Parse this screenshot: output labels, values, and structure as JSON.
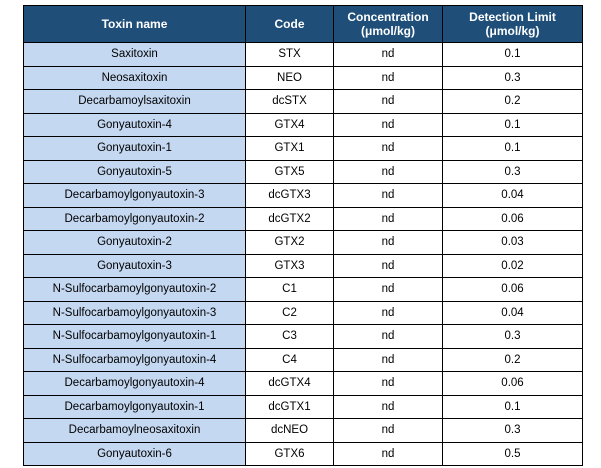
{
  "colors": {
    "header_bg": "#1F4E79",
    "header_text": "#FFFFFF",
    "name_column_bg": "#C5D8F1",
    "body_bg": "#FFFFFF",
    "border": "#000000"
  },
  "chart_data": {
    "type": "table",
    "columns": [
      {
        "id": "name",
        "line1": "Toxin name",
        "line2": ""
      },
      {
        "id": "code",
        "line1": "Code",
        "line2": ""
      },
      {
        "id": "concentration",
        "line1": "Concentration",
        "line2": "(μmol/kg)"
      },
      {
        "id": "detection_limit",
        "line1": "Detection Limit",
        "line2": "(μmol/kg)"
      }
    ],
    "rows": [
      {
        "name": "Saxitoxin",
        "code": "STX",
        "concentration": "nd",
        "detection_limit": "0.1"
      },
      {
        "name": "Neosaxitoxin",
        "code": "NEO",
        "concentration": "nd",
        "detection_limit": "0.3"
      },
      {
        "name": "Decarbamoylsaxitoxin",
        "code": "dcSTX",
        "concentration": "nd",
        "detection_limit": "0.2"
      },
      {
        "name": "Gonyautoxin-4",
        "code": "GTX4",
        "concentration": "nd",
        "detection_limit": "0.1"
      },
      {
        "name": "Gonyautoxin-1",
        "code": "GTX1",
        "concentration": "nd",
        "detection_limit": "0.1"
      },
      {
        "name": "Gonyautoxin-5",
        "code": "GTX5",
        "concentration": "nd",
        "detection_limit": "0.3"
      },
      {
        "name": "Decarbamoylgonyautoxin-3",
        "code": "dcGTX3",
        "concentration": "nd",
        "detection_limit": "0.04"
      },
      {
        "name": "Decarbamoylgonyautoxin-2",
        "code": "dcGTX2",
        "concentration": "nd",
        "detection_limit": "0.06"
      },
      {
        "name": "Gonyautoxin-2",
        "code": "GTX2",
        "concentration": "nd",
        "detection_limit": "0.03"
      },
      {
        "name": "Gonyautoxin-3",
        "code": "GTX3",
        "concentration": "nd",
        "detection_limit": "0.02"
      },
      {
        "name": "N-Sulfocarbamoylgonyautoxin-2",
        "code": "C1",
        "concentration": "nd",
        "detection_limit": "0.06"
      },
      {
        "name": "N-Sulfocarbamoylgonyautoxin-3",
        "code": "C2",
        "concentration": "nd",
        "detection_limit": "0.04"
      },
      {
        "name": "N-Sulfocarbamoylgonyautoxin-1",
        "code": "C3",
        "concentration": "nd",
        "detection_limit": "0.3"
      },
      {
        "name": "N-Sulfocarbamoylgonyautoxin-4",
        "code": "C4",
        "concentration": "nd",
        "detection_limit": "0.2"
      },
      {
        "name": "Decarbamoylgonyautoxin-4",
        "code": "dcGTX4",
        "concentration": "nd",
        "detection_limit": "0.06"
      },
      {
        "name": "Decarbamoylgonyautoxin-1",
        "code": "dcGTX1",
        "concentration": "nd",
        "detection_limit": "0.1"
      },
      {
        "name": "Decarbamoylneosaxitoxin",
        "code": "dcNEO",
        "concentration": "nd",
        "detection_limit": "0.3"
      },
      {
        "name": "Gonyautoxin-6",
        "code": "GTX6",
        "concentration": "nd",
        "detection_limit": "0.5"
      }
    ]
  }
}
